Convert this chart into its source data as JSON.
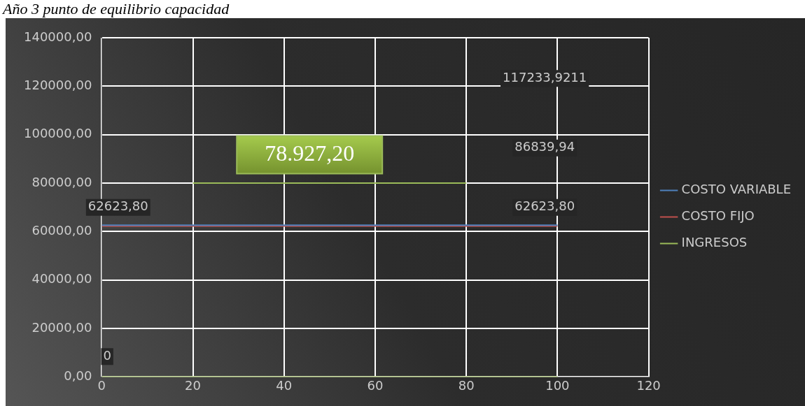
{
  "chart_data": {
    "type": "line",
    "title": "Año 3 punto de equilibrio capacidad",
    "x": [
      0,
      100
    ],
    "series": [
      {
        "name": "COSTO VARIABLE",
        "color": "#4f81bd",
        "values": [
          62600,
          62600
        ]
      },
      {
        "name": "COSTO FIJO",
        "color": "#c0504d",
        "values": [
          62300,
          62300
        ]
      },
      {
        "name": "INGRESOS",
        "color": "#9bbb59",
        "values": [
          0,
          0
        ]
      },
      {
        "color": "#9bbb59",
        "x": [
          20,
          80
        ],
        "values": [
          80000,
          80000
        ]
      }
    ],
    "xlim": [
      0,
      120
    ],
    "xticks": [
      0,
      20,
      40,
      60,
      80,
      100,
      120
    ],
    "ylim": [
      0,
      140000
    ],
    "yticks": [
      {
        "value": 0,
        "label": "0,00"
      },
      {
        "value": 20000,
        "label": "20000,00"
      },
      {
        "value": 40000,
        "label": "40000,00"
      },
      {
        "value": 60000,
        "label": "60000,00"
      },
      {
        "value": 80000,
        "label": "80000,00"
      },
      {
        "value": 100000,
        "label": "100000,00"
      },
      {
        "value": 120000,
        "label": "120000,00"
      },
      {
        "value": 140000,
        "label": "140000,00"
      }
    ],
    "grid": true,
    "legend": "right",
    "line_style": "solid",
    "annotations": [
      "117233,9211",
      "86839,94",
      "62623,80",
      "62623,80",
      "0",
      "78.927,20"
    ]
  }
}
